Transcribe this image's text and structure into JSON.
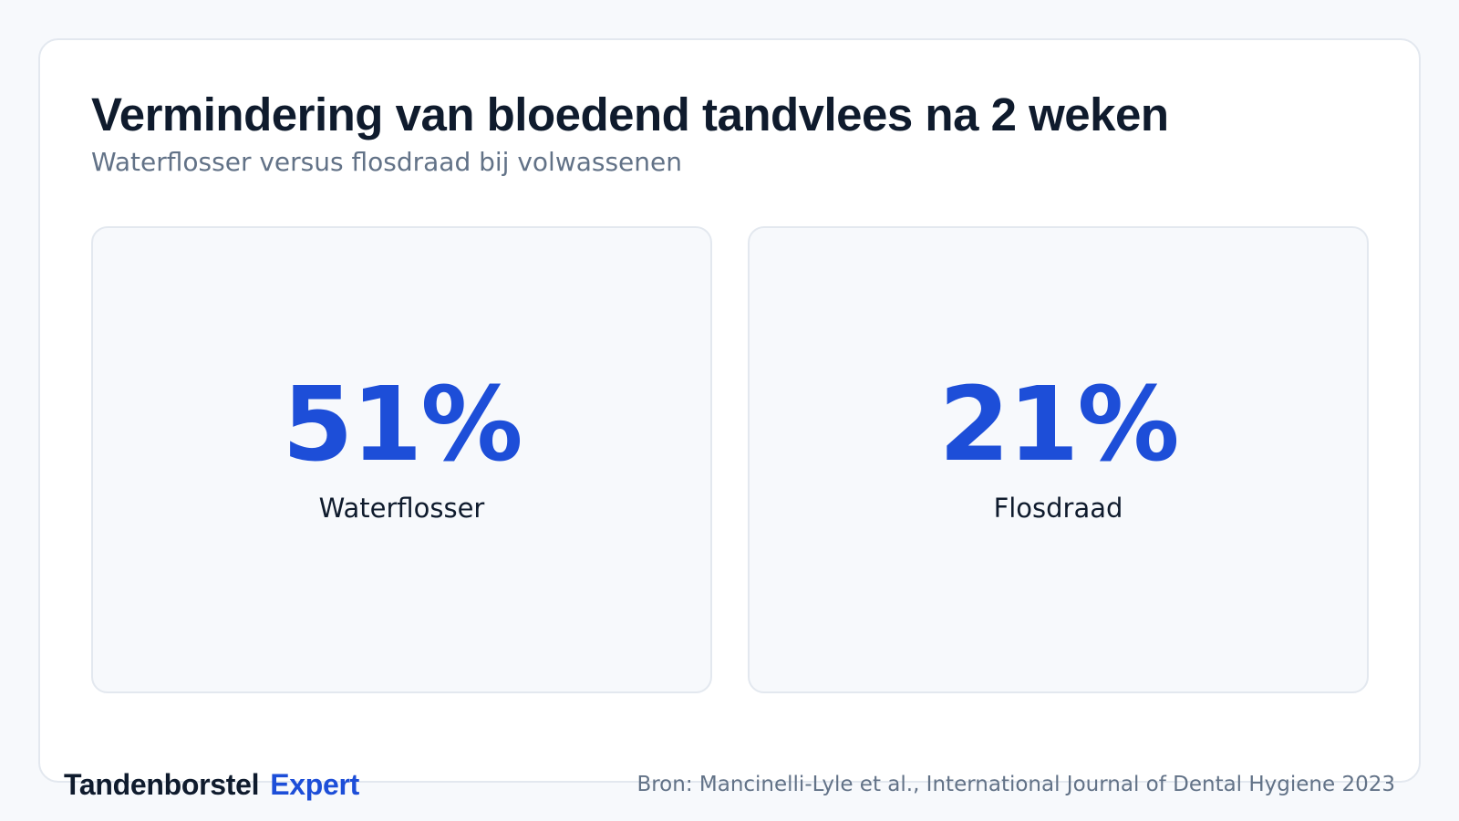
{
  "title": "Vermindering van bloedend tandvlees na 2 weken",
  "subtitle": "Waterflosser versus flosdraad bij volwassenen",
  "colors": {
    "accent": "#1d4ed8",
    "text": "#0f1b2d",
    "muted": "#627287",
    "card_border": "#e3e8ef"
  },
  "chart_data": {
    "type": "table",
    "title": "Vermindering van bloedend tandvlees na 2 weken",
    "subtitle": "Waterflosser versus flosdraad bij volwassenen",
    "categories": [
      "Waterflosser",
      "Flosdraad"
    ],
    "values": [
      51,
      21
    ],
    "value_labels": [
      "51%",
      "21%"
    ],
    "unit": "%"
  },
  "footer": {
    "brand_main": "Tandenborstel",
    "brand_accent": "Expert",
    "source": "Bron: Mancinelli-Lyle et al., International Journal of Dental Hygiene 2023"
  }
}
